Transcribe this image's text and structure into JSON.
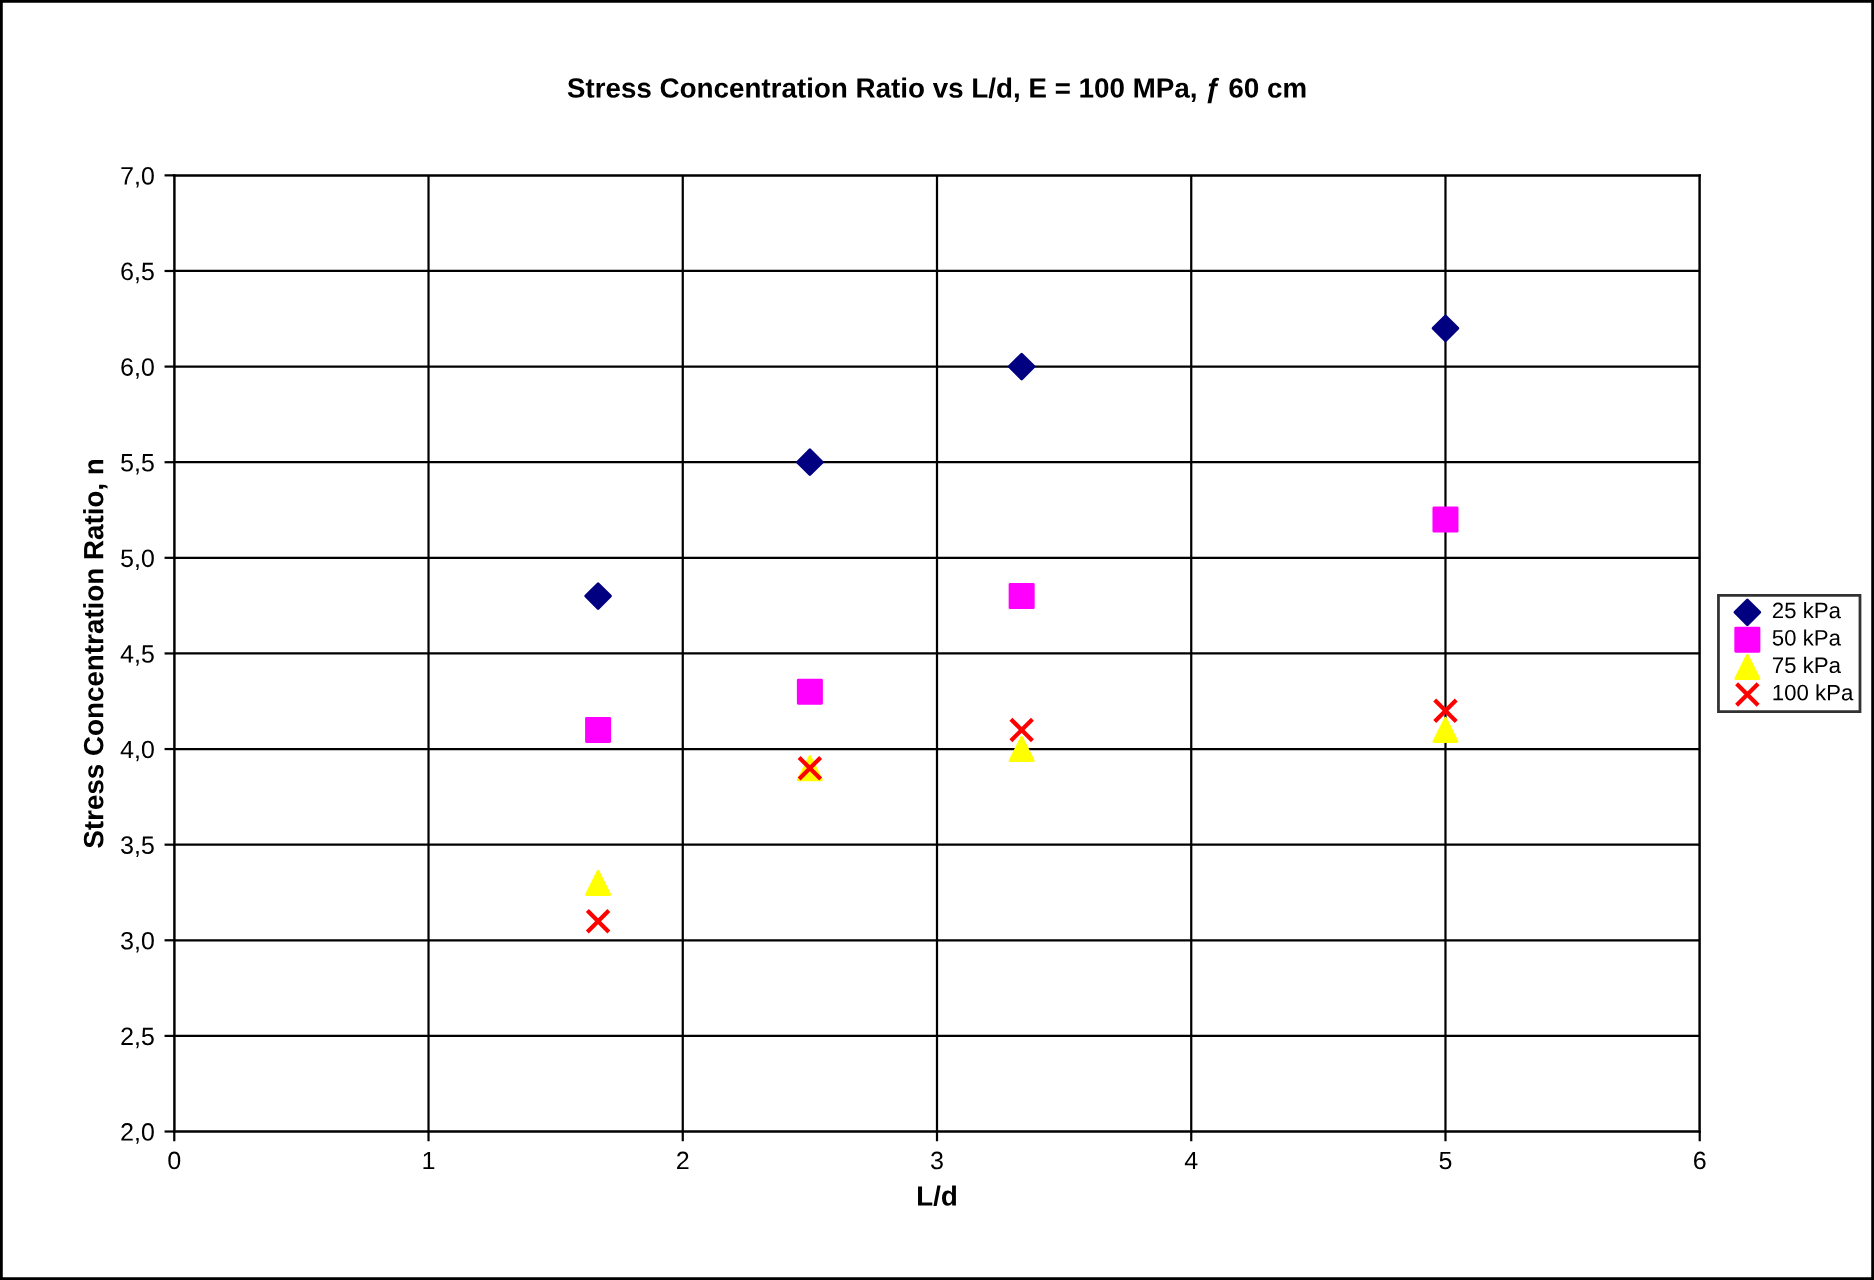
{
  "chart_data": {
    "type": "scatter",
    "title": "Stress Concentration Ratio vs L/d, E = 100 MPa, ƒ 60 cm",
    "xlabel": "L/d",
    "ylabel": "Stress Concentration Ratio, n",
    "x": [
      1.667,
      2.5,
      3.333,
      5
    ],
    "series": [
      {
        "name": "25 kPa",
        "color": "#000080",
        "marker": "diamond",
        "values": [
          4.8,
          5.5,
          6.0,
          6.2
        ]
      },
      {
        "name": "50 kPa",
        "color": "#ff00ff",
        "marker": "square",
        "values": [
          4.1,
          4.3,
          4.8,
          5.2
        ]
      },
      {
        "name": "75 kPa",
        "color": "#ffff00",
        "marker": "triangle",
        "values": [
          3.3,
          3.9,
          4.0,
          4.1
        ]
      },
      {
        "name": "100 kPa",
        "color": "#ff0000",
        "marker": "cross",
        "values": [
          3.1,
          3.9,
          4.1,
          4.2
        ]
      }
    ],
    "xlim": [
      0,
      6
    ],
    "xticks": [
      0,
      1,
      2,
      3,
      4,
      5,
      6
    ],
    "ylim": [
      2,
      7
    ],
    "yticks": [
      {
        "value": 2,
        "label": "2,0"
      },
      {
        "value": 2.5,
        "label": "2,5"
      },
      {
        "value": 3,
        "label": "3,0"
      },
      {
        "value": 3.5,
        "label": "3,5"
      },
      {
        "value": 4,
        "label": "4,0"
      },
      {
        "value": 4.5,
        "label": "4,5"
      },
      {
        "value": 5,
        "label": "5,0"
      },
      {
        "value": 5.5,
        "label": "5,5"
      },
      {
        "value": 6,
        "label": "6,0"
      },
      {
        "value": 6.5,
        "label": "6,5"
      },
      {
        "value": 7,
        "label": "7,0"
      }
    ],
    "grid": true,
    "legend": "right"
  }
}
